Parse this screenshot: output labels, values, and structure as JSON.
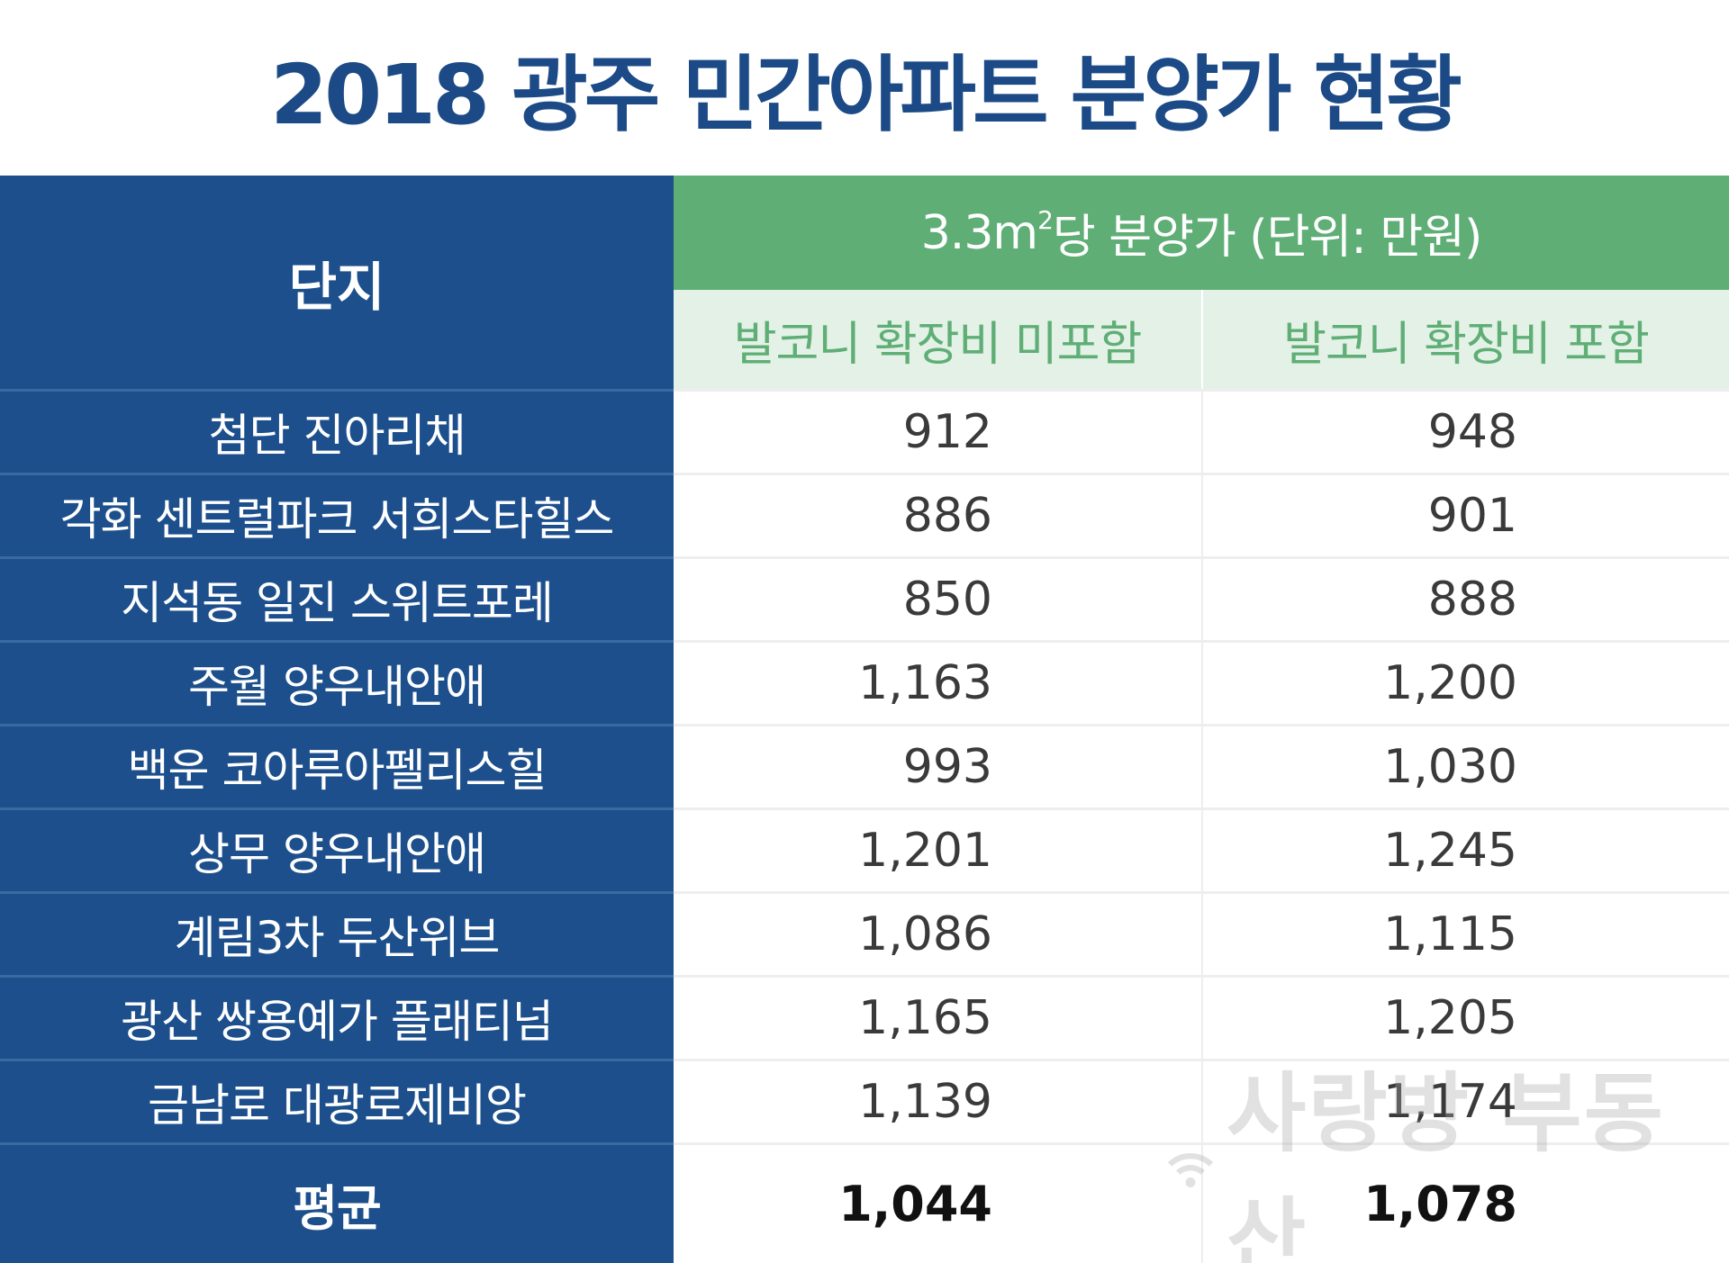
{
  "title": "2018 광주 민간아파트 분양가 현황",
  "table": {
    "complex_header": "단지",
    "group_header_prefix": "3.3m",
    "group_header_sup": "2",
    "group_header_suffix": "당 분양가 (단위: 만원)",
    "col1_header": "발코니 확장비 미포함",
    "col2_header": "발코니 확장비 포함",
    "rows": [
      {
        "name": "첨단 진아리채",
        "excl": "912",
        "incl": "948"
      },
      {
        "name": "각화 센트럴파크 서희스타힐스",
        "excl": "886",
        "incl": "901"
      },
      {
        "name": "지석동 일진 스위트포레",
        "excl": "850",
        "incl": "888"
      },
      {
        "name": "주월 양우내안애",
        "excl": "1,163",
        "incl": "1,200"
      },
      {
        "name": "백운 코아루아펠리스힐",
        "excl": "993",
        "incl": "1,030"
      },
      {
        "name": "상무 양우내안애",
        "excl": "1,201",
        "incl": "1,245"
      },
      {
        "name": "계림3차 두산위브",
        "excl": "1,086",
        "incl": "1,115"
      },
      {
        "name": "광산 쌍용예가 플래티넘",
        "excl": "1,165",
        "incl": "1,205"
      },
      {
        "name": "금남로 대광로제비앙",
        "excl": "1,139",
        "incl": "1,174"
      }
    ],
    "average": {
      "name": "평균",
      "excl": "1,044",
      "incl": "1,078"
    }
  },
  "watermark": "사랑방 부동산",
  "colors": {
    "title": "#1c4a86",
    "left_column": "#1c4f8c",
    "group_header": "#5fae76",
    "sub_header_bg": "#e3f1e6"
  }
}
